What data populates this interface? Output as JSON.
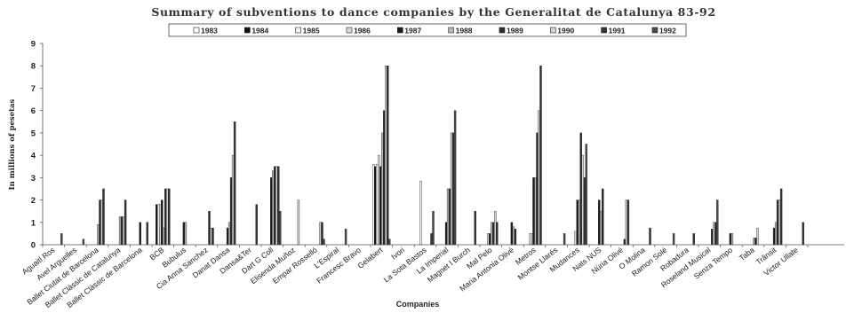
{
  "chart_data": {
    "type": "bar",
    "title": "Summary of subventions to dance companies by the Generalitat de Catalunya 83-92",
    "xlabel": "Companies",
    "ylabel": "In millions of pesetas",
    "ylim": [
      0,
      9
    ],
    "yticks": [
      0,
      1,
      2,
      3,
      4,
      5,
      6,
      7,
      8,
      9
    ],
    "grid": false,
    "legend_position": "top-center",
    "categories": [
      "Aguaitl Ros",
      "Avel Arguelles",
      "Ballet Ciutat de Barcelona",
      "Ballet Clàssic de Catalunya",
      "Ballet Clàssic de Barcelona",
      "BCB",
      "Bubulus",
      "Cia Anna Sanchez",
      "Danat Dansa",
      "Dansa&Ter",
      "Dart G Coll",
      "Elisenda Muñoz",
      "Empar Rosselló",
      "L'Espiral",
      "Francesc Bravo",
      "Gelabert",
      "Ivori",
      "La Sota Bastos",
      "La Imperial",
      "Magnet I Burch",
      "Mal Pelo",
      "Maria Antonia Olivé",
      "Metros",
      "Montse Llarés",
      "Mudances",
      "Nats NUS",
      "Núria Olivé",
      "O Molina",
      "Ramon Solé",
      "Robadura",
      "Roseland Musical",
      "Senza Tempo",
      "Taba",
      "Trânsit",
      "Victor Ullate"
    ],
    "series": [
      {
        "name": "1983",
        "values": [
          0,
          0,
          0,
          0,
          0,
          0,
          0,
          0,
          0,
          0,
          0,
          0,
          0,
          0,
          0,
          3.6,
          0,
          0,
          0,
          0,
          0,
          0,
          0,
          0,
          0,
          0,
          0,
          0,
          0,
          0,
          0,
          0,
          0,
          0,
          0
        ]
      },
      {
        "name": "1984",
        "values": [
          0,
          0,
          0,
          0,
          0,
          1.8,
          0,
          0,
          0,
          0,
          0,
          0,
          0,
          0,
          0,
          3.5,
          0,
          0,
          0,
          0,
          0,
          0,
          0,
          0,
          0,
          0,
          0,
          0,
          0,
          0,
          0,
          0,
          0,
          0,
          0
        ]
      },
      {
        "name": "1985",
        "values": [
          0,
          0,
          0,
          0,
          0,
          1.8,
          0,
          0,
          0,
          0,
          0,
          0,
          0,
          0,
          0,
          3.6,
          0,
          2.85,
          0,
          0,
          0,
          0,
          0.5,
          0,
          0,
          0,
          0,
          0,
          0,
          0,
          0,
          0,
          0,
          0,
          0
        ]
      },
      {
        "name": "1986",
        "values": [
          0,
          0,
          0,
          0,
          0,
          1.8,
          0,
          0,
          0,
          0,
          0,
          0,
          0,
          0,
          0,
          4.0,
          0,
          0,
          0,
          0,
          0.5,
          0,
          0.5,
          0,
          0.6,
          0,
          0,
          0,
          0,
          0,
          0,
          0,
          0,
          0,
          0
        ]
      },
      {
        "name": "1987",
        "values": [
          0,
          0,
          0,
          0,
          1.0,
          2.0,
          1.0,
          0,
          0.75,
          0,
          3.0,
          0,
          0,
          0,
          0,
          3.5,
          0,
          0,
          1.0,
          0,
          0.5,
          1.0,
          3.0,
          0,
          2.0,
          2.0,
          0,
          0,
          0,
          0,
          0,
          0.5,
          0,
          0.75,
          0
        ]
      },
      {
        "name": "1988",
        "values": [
          0,
          0,
          0.9,
          1.25,
          0,
          0.75,
          1.0,
          0,
          1.0,
          0,
          3.3,
          0,
          0,
          0,
          0,
          5.0,
          0,
          0,
          2.5,
          0,
          1.0,
          0.8,
          3.0,
          0,
          2.0,
          1.5,
          0,
          0,
          0,
          0,
          0,
          0.5,
          0.3,
          1.0,
          0
        ]
      },
      {
        "name": "1989",
        "values": [
          0,
          0,
          2.0,
          1.25,
          0,
          2.5,
          0,
          1.5,
          3.0,
          0,
          3.5,
          0,
          0,
          0,
          0,
          6.0,
          0,
          0,
          2.5,
          0,
          1.0,
          0.7,
          5.0,
          0,
          5.0,
          2.5,
          0.25,
          0,
          0,
          0,
          0.7,
          0,
          0.3,
          2.0,
          0
        ]
      },
      {
        "name": "1990",
        "values": [
          0,
          0,
          2.0,
          1.25,
          0,
          2.5,
          0,
          0.75,
          4.0,
          0,
          3.5,
          2.0,
          1.0,
          0,
          0,
          8.0,
          0,
          0,
          5.0,
          0,
          1.5,
          0,
          6.0,
          0,
          4.0,
          0,
          2.0,
          0,
          0,
          0,
          1.0,
          0,
          0.75,
          2.0,
          0
        ]
      },
      {
        "name": "1991",
        "values": [
          0,
          0,
          2.5,
          2.0,
          1.0,
          2.5,
          0,
          0.75,
          5.5,
          1.8,
          3.5,
          0,
          1.0,
          0,
          0,
          8.0,
          0,
          0.5,
          5.0,
          1.5,
          1.0,
          0,
          8.0,
          0,
          3.0,
          0,
          2.0,
          0.75,
          0,
          0.5,
          1.0,
          0,
          0,
          2.5,
          1.0
        ]
      },
      {
        "name": "1992",
        "values": [
          0.5,
          0.25,
          0,
          0,
          0,
          0,
          0,
          0,
          0,
          0,
          1.5,
          0,
          0.25,
          0.7,
          0,
          0.25,
          0,
          1.5,
          6.0,
          0,
          0,
          0,
          0,
          0.5,
          4.5,
          0,
          0,
          0,
          0.5,
          0,
          2.0,
          0,
          0,
          0,
          0
        ]
      }
    ],
    "series_colors": [
      "#ffffff",
      "#111111",
      "#f4f4f4",
      "#dadada",
      "#1a1a1a",
      "#b8b8b8",
      "#2a2a2a",
      "#d4d4d4",
      "#333333",
      "#4a4a4a"
    ]
  }
}
